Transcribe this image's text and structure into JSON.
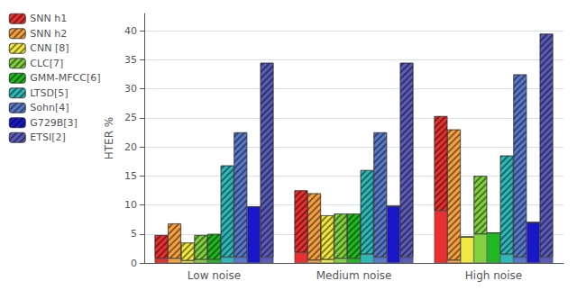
{
  "chart_data": {
    "type": "bar",
    "categories": [
      "Low noise",
      "Medium noise",
      "High noise"
    ],
    "series": [
      {
        "name": "SNN h1",
        "color": "#e83030",
        "values": [
          0.8,
          1.8,
          9.0
        ],
        "hatched": [
          4.0,
          10.7,
          16.3
        ]
      },
      {
        "name": "SNN h2",
        "color": "#f5a040",
        "values": [
          0.8,
          0.5,
          0.5
        ],
        "hatched": [
          6.0,
          11.5,
          22.5
        ]
      },
      {
        "name": "CNN [8]",
        "color": "#f0e840",
        "values": [
          0.4,
          0.6,
          4.5
        ],
        "hatched": [
          3.1,
          7.6,
          0.0
        ]
      },
      {
        "name": "CLC[7]",
        "color": "#80d040",
        "values": [
          0.6,
          0.8,
          5.0
        ],
        "hatched": [
          4.2,
          7.7,
          10.0
        ]
      },
      {
        "name": "GMM-MFCC[6]",
        "color": "#20b820",
        "values": [
          0.6,
          0.8,
          5.2
        ],
        "hatched": [
          4.4,
          7.7,
          0.0
        ]
      },
      {
        "name": "LTSD[5]",
        "color": "#30b8b8",
        "values": [
          1.0,
          1.5,
          1.5
        ],
        "hatched": [
          15.8,
          14.5,
          17.0
        ]
      },
      {
        "name": "Sohn[4]",
        "color": "#5878c8",
        "values": [
          1.0,
          1.0,
          1.0
        ],
        "hatched": [
          21.5,
          21.5,
          31.5
        ]
      },
      {
        "name": "G729B[3]",
        "color": "#1818c8",
        "values": [
          9.7,
          9.8,
          7.0
        ],
        "hatched": [
          0.0,
          0.0,
          0.0
        ]
      },
      {
        "name": "ETSI[2]",
        "color": "#5a5ab8",
        "values": [
          1.0,
          1.0,
          1.0
        ],
        "hatched": [
          33.5,
          33.5,
          38.5
        ]
      }
    ],
    "ylabel": "HTER %",
    "ylim": [
      0,
      43
    ],
    "yticks": [
      0,
      5,
      10,
      15,
      20,
      25,
      30,
      35,
      40
    ],
    "grid": true,
    "legend": "upper left",
    "stacked": true
  }
}
